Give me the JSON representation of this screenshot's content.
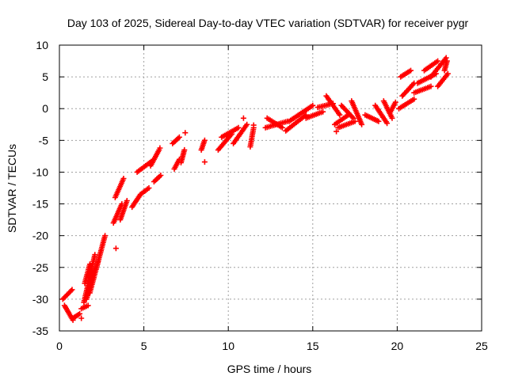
{
  "chart_data": {
    "type": "scatter",
    "title": "Day 103 of 2025, Sidereal Day-to-day VTEC variation (SDTVAR) for receiver pygr",
    "xlabel": "GPS time / hours",
    "ylabel": "SDTVAR / TECUs",
    "xlim": [
      0,
      25
    ],
    "ylim": [
      -35,
      10
    ],
    "xticks": [
      0,
      5,
      10,
      15,
      20,
      25
    ],
    "yticks": [
      -35,
      -30,
      -25,
      -20,
      -15,
      -10,
      -5,
      0,
      5,
      10
    ],
    "grid": true,
    "marker": "+",
    "color": "#ff0000",
    "series": [
      {
        "name": "SDTVAR",
        "segments": [
          {
            "x0": 0.2,
            "y0": -30.0,
            "x1": 0.75,
            "y1": -28.5
          },
          {
            "x0": 0.3,
            "y0": -31.0,
            "x1": 0.8,
            "y1": -33.3
          },
          {
            "x0": 0.8,
            "y0": -33.0,
            "x1": 1.2,
            "y1": -32.3
          },
          {
            "x0": 1.3,
            "y0": -31.5,
            "x1": 1.7,
            "y1": -31.0
          },
          {
            "x0": 1.45,
            "y0": -30.5,
            "x1": 2.1,
            "y1": -23.0
          },
          {
            "x0": 1.6,
            "y0": -30.0,
            "x1": 2.3,
            "y1": -24.0
          },
          {
            "x0": 1.8,
            "y0": -29.0,
            "x1": 2.7,
            "y1": -20.0
          },
          {
            "x0": 1.5,
            "y0": -27.5,
            "x1": 1.8,
            "y1": -24.5
          },
          {
            "x0": 3.2,
            "y0": -18.0,
            "x1": 3.7,
            "y1": -15.0
          },
          {
            "x0": 3.3,
            "y0": -14.0,
            "x1": 3.8,
            "y1": -11.0
          },
          {
            "x0": 3.6,
            "y0": -17.5,
            "x1": 4.0,
            "y1": -14.5
          },
          {
            "x0": 4.3,
            "y0": -15.5,
            "x1": 4.8,
            "y1": -13.5
          },
          {
            "x0": 4.8,
            "y0": -13.5,
            "x1": 5.3,
            "y1": -12.5
          },
          {
            "x0": 4.6,
            "y0": -10.0,
            "x1": 5.6,
            "y1": -8.0
          },
          {
            "x0": 5.6,
            "y0": -11.5,
            "x1": 6.0,
            "y1": -10.5
          },
          {
            "x0": 5.4,
            "y0": -9.0,
            "x1": 5.9,
            "y1": -6.5
          },
          {
            "x0": 6.8,
            "y0": -9.5,
            "x1": 7.1,
            "y1": -8.0
          },
          {
            "x0": 6.7,
            "y0": -5.5,
            "x1": 7.1,
            "y1": -4.5
          },
          {
            "x0": 7.2,
            "y0": -8.5,
            "x1": 7.4,
            "y1": -6.5
          },
          {
            "x0": 8.4,
            "y0": -6.5,
            "x1": 8.6,
            "y1": -5.0
          },
          {
            "x0": 9.4,
            "y0": -6.5,
            "x1": 10.2,
            "y1": -4.0
          },
          {
            "x0": 9.6,
            "y0": -4.5,
            "x1": 10.6,
            "y1": -3.0
          },
          {
            "x0": 10.3,
            "y0": -5.5,
            "x1": 11.1,
            "y1": -2.5
          },
          {
            "x0": 11.3,
            "y0": -6.0,
            "x1": 11.5,
            "y1": -3.0
          },
          {
            "x0": 12.2,
            "y0": -3.0,
            "x1": 13.5,
            "y1": -2.0
          },
          {
            "x0": 12.3,
            "y0": -1.5,
            "x1": 13.2,
            "y1": -3.0
          },
          {
            "x0": 13.4,
            "y0": -3.5,
            "x1": 14.6,
            "y1": -1.0
          },
          {
            "x0": 13.6,
            "y0": -2.0,
            "x1": 15.0,
            "y1": 0.5
          },
          {
            "x0": 14.6,
            "y0": -1.5,
            "x1": 15.6,
            "y1": -0.5
          },
          {
            "x0": 15.3,
            "y0": 0.2,
            "x1": 16.2,
            "y1": 0.8
          },
          {
            "x0": 15.8,
            "y0": 2.0,
            "x1": 16.6,
            "y1": -1.0
          },
          {
            "x0": 16.3,
            "y0": -2.5,
            "x1": 17.1,
            "y1": -1.0
          },
          {
            "x0": 16.5,
            "y0": -3.0,
            "x1": 17.5,
            "y1": -2.0
          },
          {
            "x0": 16.7,
            "y0": 0.5,
            "x1": 17.4,
            "y1": -1.5
          },
          {
            "x0": 17.3,
            "y0": 1.2,
            "x1": 17.9,
            "y1": -2.5
          },
          {
            "x0": 18.1,
            "y0": -1.0,
            "x1": 18.9,
            "y1": -2.0
          },
          {
            "x0": 18.7,
            "y0": 0.5,
            "x1": 19.4,
            "y1": -2.3
          },
          {
            "x0": 19.2,
            "y0": 1.2,
            "x1": 19.7,
            "y1": -1.5
          },
          {
            "x0": 19.6,
            "y0": -0.5,
            "x1": 19.9,
            "y1": 1.0
          },
          {
            "x0": 20.1,
            "y0": 0.0,
            "x1": 21.0,
            "y1": 1.5
          },
          {
            "x0": 20.3,
            "y0": 2.0,
            "x1": 21.0,
            "y1": 4.0
          },
          {
            "x0": 20.2,
            "y0": 5.0,
            "x1": 20.8,
            "y1": 6.0
          },
          {
            "x0": 21.0,
            "y0": 2.5,
            "x1": 22.0,
            "y1": 3.5
          },
          {
            "x0": 21.2,
            "y0": 4.0,
            "x1": 22.3,
            "y1": 5.5
          },
          {
            "x0": 21.6,
            "y0": 6.0,
            "x1": 22.4,
            "y1": 7.5
          },
          {
            "x0": 22.0,
            "y0": 5.0,
            "x1": 22.9,
            "y1": 8.0
          },
          {
            "x0": 22.4,
            "y0": 3.5,
            "x1": 23.0,
            "y1": 5.5
          },
          {
            "x0": 22.8,
            "y0": 6.0,
            "x1": 22.95,
            "y1": 7.5
          }
        ],
        "isolated_points": [
          {
            "x": 1.3,
            "y": -33.0
          },
          {
            "x": 3.35,
            "y": -22.0
          },
          {
            "x": 5.95,
            "y": -6.2
          },
          {
            "x": 7.45,
            "y": -3.8
          },
          {
            "x": 8.6,
            "y": -8.4
          },
          {
            "x": 10.9,
            "y": -1.5
          },
          {
            "x": 11.5,
            "y": -2.6
          },
          {
            "x": 16.4,
            "y": -3.6
          }
        ]
      }
    ]
  }
}
